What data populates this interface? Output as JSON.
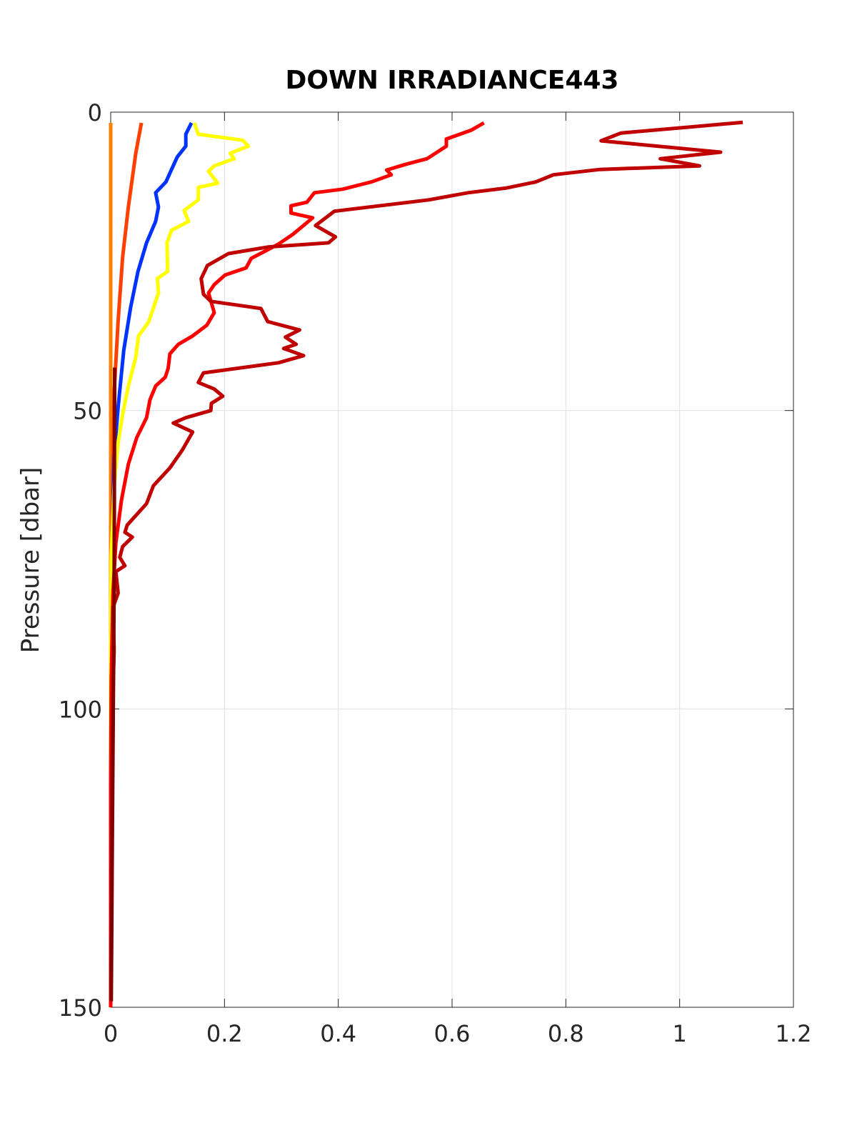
{
  "chart_data": {
    "type": "line",
    "title": "DOWN IRRADIANCE443",
    "ylabel": "Pressure [dbar]",
    "xlim": [
      0,
      1.2
    ],
    "xticks": [
      0,
      0.2,
      0.4,
      0.6,
      0.8,
      1,
      1.2
    ],
    "ylim": [
      0,
      150
    ],
    "yticks": [
      0,
      50,
      100,
      150
    ],
    "y_reversed": true,
    "grid": true,
    "series": [
      {
        "color": "#ff8000",
        "x": [
          0,
          0
        ],
        "y": [
          1.8,
          150
        ]
      },
      {
        "color": "#ff4000",
        "x": [
          0.054,
          0.044,
          0.031,
          0.021,
          0.013,
          0.006,
          0.003,
          0,
          0
        ],
        "y": [
          1.8,
          6.9,
          15.9,
          24.3,
          35,
          47,
          65,
          89,
          150
        ]
      },
      {
        "color": "#0033ff",
        "x": [
          0.142,
          0.132,
          0.132,
          0.117,
          0.097,
          0.079,
          0.084,
          0.079,
          0.063,
          0.048,
          0.035,
          0.023,
          0.013,
          0.006,
          0.003,
          0,
          0
        ],
        "y": [
          1.8,
          3.7,
          5.7,
          7.5,
          11.7,
          13.5,
          15.9,
          18.3,
          21.9,
          26.7,
          32.7,
          39.9,
          49.4,
          57.8,
          71,
          89,
          150
        ]
      },
      {
        "color": "#ffff00",
        "x": [
          0.147,
          0.154,
          0.232,
          0.242,
          0.21,
          0.217,
          0.182,
          0.172,
          0.188,
          0.154,
          0.154,
          0.129,
          0.137,
          0.107,
          0.099,
          0.1,
          0.082,
          0.084,
          0.067,
          0.049,
          0.044,
          0.031,
          0.021,
          0.013,
          0.006,
          0.001,
          0,
          0
        ],
        "y": [
          1.8,
          3.7,
          4.7,
          5.7,
          6.9,
          7.8,
          9,
          9.9,
          11.9,
          12.6,
          14.7,
          16.5,
          18.3,
          19.8,
          21.9,
          26.7,
          27.9,
          30.3,
          35.1,
          37.5,
          41.1,
          45.9,
          50.6,
          55.4,
          62.6,
          74.6,
          89,
          150
        ]
      },
      {
        "color": "#ff0000",
        "x": [
          0.656,
          0.634,
          0.59,
          0.59,
          0.556,
          0.52,
          0.485,
          0.493,
          0.458,
          0.408,
          0.358,
          0.345,
          0.317,
          0.317,
          0.355,
          0.32,
          0.295,
          0.275,
          0.247,
          0.238,
          0.201,
          0.182,
          0.172,
          0.182,
          0.169,
          0.144,
          0.119,
          0.104,
          0.101,
          0.096,
          0.079,
          0.069,
          0.063,
          0.046,
          0.031,
          0.019,
          0.009,
          0.004,
          0.001,
          0,
          0
        ],
        "y": [
          1.8,
          3,
          4.5,
          5.7,
          7.8,
          8.7,
          9.7,
          10.5,
          11.7,
          12.9,
          13.5,
          15.1,
          15.7,
          16.9,
          17.7,
          20.5,
          22.1,
          23.1,
          24.5,
          26.1,
          27.3,
          28.9,
          30.3,
          33.6,
          35.7,
          37.5,
          38.9,
          40.5,
          42.9,
          44.4,
          45.9,
          48.2,
          51.2,
          54.5,
          59,
          65,
          72.2,
          80.6,
          95,
          112.9,
          150
        ]
      },
      {
        "color": "#c00000",
        "x": [
          1.111,
          1.017,
          0.897,
          0.862,
          1.072,
          0.966,
          1.035,
          0.86,
          0.778,
          0.747,
          0.696,
          0.628,
          0.559,
          0.393,
          0.36,
          0.395,
          0.383,
          0.276,
          0.207,
          0.17,
          0.159,
          0.163,
          0.176,
          0.264,
          0.276,
          0.332,
          0.307,
          0.326,
          0.304,
          0.339,
          0.295,
          0.163,
          0.154,
          0.182,
          0.197,
          0.177,
          0.176,
          0.132,
          0.11,
          0.144,
          0.126,
          0.104,
          0.075,
          0.063,
          0.029,
          0.025,
          0.038,
          0.021,
          0.016,
          0.025,
          0.009,
          0.013,
          0.004,
          0.006,
          0.003,
          0.001,
          0
        ],
        "y": [
          1.7,
          2.5,
          3.5,
          4.8,
          6.7,
          7.8,
          9,
          9.6,
          10.5,
          11.7,
          12.7,
          13.5,
          14.7,
          16.6,
          19,
          20.9,
          21.9,
          22.6,
          23.7,
          25.7,
          27.9,
          30.5,
          31.7,
          32.9,
          35.1,
          36.5,
          37.7,
          38.9,
          39.6,
          40.8,
          42,
          43.7,
          45.3,
          46.4,
          47.6,
          48.8,
          50,
          51.2,
          52.1,
          53.6,
          56.6,
          59.6,
          62.6,
          65.6,
          69.2,
          70.4,
          71.2,
          72.8,
          74.6,
          76,
          77,
          80.6,
          83,
          90.1,
          100.9,
          124.8,
          148.8
        ]
      },
      {
        "color": "#800000",
        "x": [
          0.007,
          0.006,
          0.003,
          0.001
        ],
        "y": [
          42.8,
          80,
          120,
          149
        ]
      }
    ]
  }
}
